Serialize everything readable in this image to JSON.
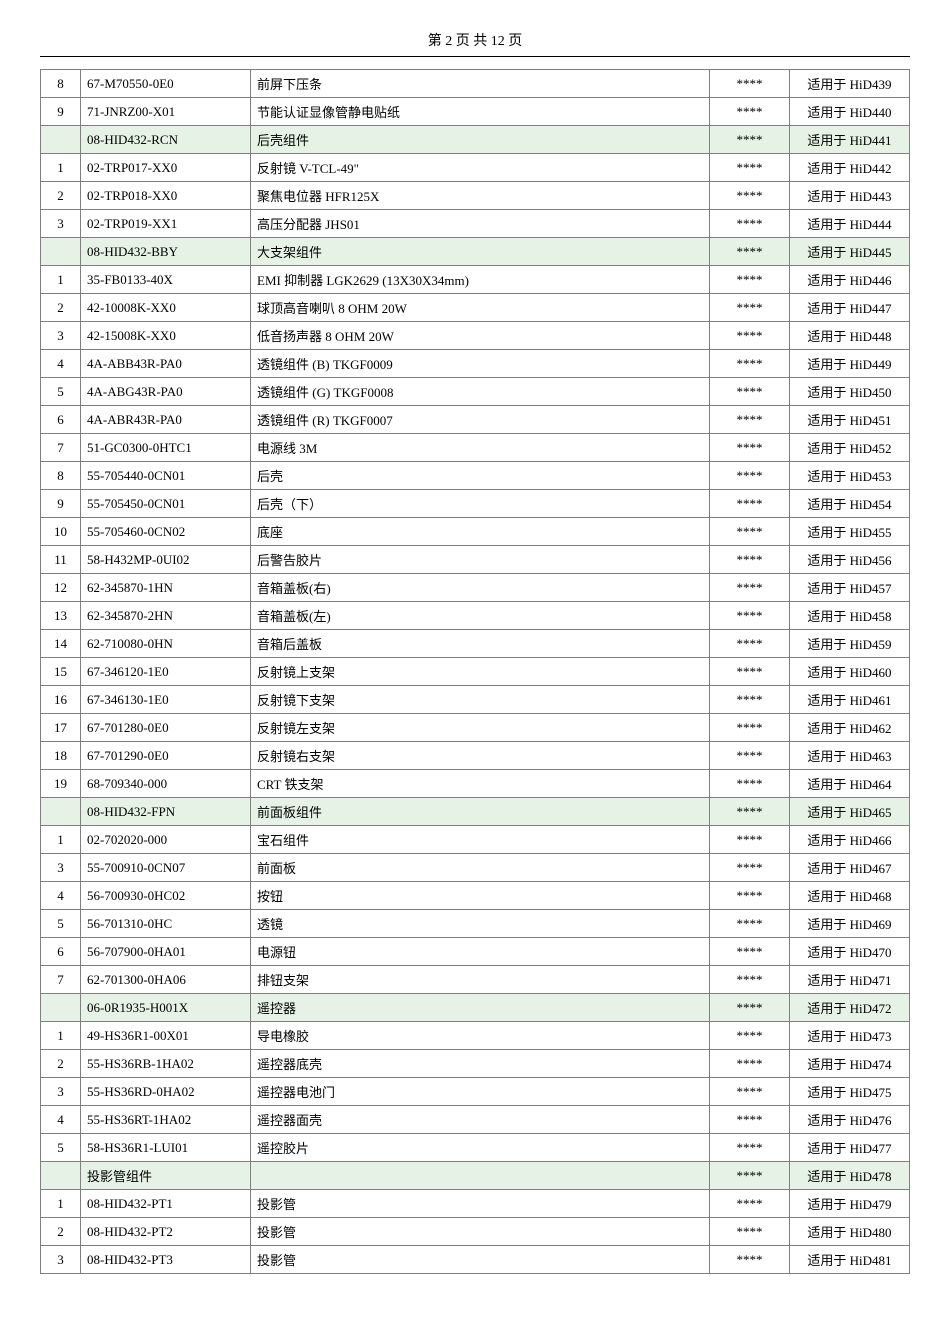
{
  "header": "第 2 页 共 12 页",
  "stars": "****",
  "rows": [
    {
      "num": "8",
      "code": "67-M70550-0E0",
      "desc": "前屏下压条",
      "model": "适用于 HiD439",
      "section": false
    },
    {
      "num": "9",
      "code": "71-JNRZ00-X01",
      "desc": "节能认证显像管静电贴纸",
      "model": "适用于 HiD440",
      "section": false
    },
    {
      "num": "",
      "code": "08-HID432-RCN",
      "desc": "后壳组件",
      "model": "适用于 HiD441",
      "section": true
    },
    {
      "num": "1",
      "code": "02-TRP017-XX0",
      "desc": "反射镜 V-TCL-49\"",
      "model": "适用于 HiD442",
      "section": false
    },
    {
      "num": "2",
      "code": "02-TRP018-XX0",
      "desc": "聚焦电位器 HFR125X",
      "model": "适用于 HiD443",
      "section": false
    },
    {
      "num": "3",
      "code": "02-TRP019-XX1",
      "desc": "高压分配器 JHS01",
      "model": "适用于 HiD444",
      "section": false
    },
    {
      "num": "",
      "code": "08-HID432-BBY",
      "desc": "大支架组件",
      "model": "适用于 HiD445",
      "section": true
    },
    {
      "num": "1",
      "code": "35-FB0133-40X",
      "desc": "EMI 抑制器 LGK2629 (13X30X34mm)",
      "model": "适用于 HiD446",
      "section": false
    },
    {
      "num": "2",
      "code": "42-10008K-XX0",
      "desc": "球顶高音喇叭 8 OHM 20W",
      "model": "适用于 HiD447",
      "section": false
    },
    {
      "num": "3",
      "code": "42-15008K-XX0",
      "desc": "低音扬声器 8 OHM 20W",
      "model": "适用于 HiD448",
      "section": false
    },
    {
      "num": "4",
      "code": "4A-ABB43R-PA0",
      "desc": "透镜组件 (B) TKGF0009",
      "model": "适用于 HiD449",
      "section": false
    },
    {
      "num": "5",
      "code": "4A-ABG43R-PA0",
      "desc": "透镜组件 (G) TKGF0008",
      "model": "适用于 HiD450",
      "section": false
    },
    {
      "num": "6",
      "code": "4A-ABR43R-PA0",
      "desc": "透镜组件 (R) TKGF0007",
      "model": "适用于 HiD451",
      "section": false
    },
    {
      "num": "7",
      "code": "51-GC0300-0HTC1",
      "desc": "电源线 3M",
      "model": "适用于 HiD452",
      "section": false
    },
    {
      "num": "8",
      "code": "55-705440-0CN01",
      "desc": "后壳",
      "model": "适用于 HiD453",
      "section": false
    },
    {
      "num": "9",
      "code": "55-705450-0CN01",
      "desc": "后壳（下）",
      "model": "适用于 HiD454",
      "section": false
    },
    {
      "num": "10",
      "code": "55-705460-0CN02",
      "desc": "底座",
      "model": "适用于 HiD455",
      "section": false
    },
    {
      "num": "11",
      "code": "58-H432MP-0UI02",
      "desc": "后警告胶片",
      "model": "适用于 HiD456",
      "section": false
    },
    {
      "num": "12",
      "code": "62-345870-1HN",
      "desc": "音箱盖板(右)",
      "model": "适用于 HiD457",
      "section": false
    },
    {
      "num": "13",
      "code": "62-345870-2HN",
      "desc": "音箱盖板(左)",
      "model": "适用于 HiD458",
      "section": false
    },
    {
      "num": "14",
      "code": "62-710080-0HN",
      "desc": "音箱后盖板",
      "model": "适用于 HiD459",
      "section": false
    },
    {
      "num": "15",
      "code": "67-346120-1E0",
      "desc": "反射镜上支架",
      "model": "适用于 HiD460",
      "section": false
    },
    {
      "num": "16",
      "code": "67-346130-1E0",
      "desc": "反射镜下支架",
      "model": "适用于 HiD461",
      "section": false
    },
    {
      "num": "17",
      "code": "67-701280-0E0",
      "desc": "反射镜左支架",
      "model": "适用于 HiD462",
      "section": false
    },
    {
      "num": "18",
      "code": "67-701290-0E0",
      "desc": "反射镜右支架",
      "model": "适用于 HiD463",
      "section": false
    },
    {
      "num": "19",
      "code": "68-709340-000",
      "desc": "CRT 铁支架",
      "model": "适用于 HiD464",
      "section": false
    },
    {
      "num": "",
      "code": "08-HID432-FPN",
      "desc": "前面板组件",
      "model": "适用于 HiD465",
      "section": true
    },
    {
      "num": "1",
      "code": "02-702020-000",
      "desc": "宝石组件",
      "model": "适用于 HiD466",
      "section": false
    },
    {
      "num": "3",
      "code": "55-700910-0CN07",
      "desc": "前面板",
      "model": "适用于 HiD467",
      "section": false
    },
    {
      "num": "4",
      "code": "56-700930-0HC02",
      "desc": "按钮",
      "model": "适用于 HiD468",
      "section": false
    },
    {
      "num": "5",
      "code": "56-701310-0HC",
      "desc": "透镜",
      "model": "适用于 HiD469",
      "section": false
    },
    {
      "num": "6",
      "code": "56-707900-0HA01",
      "desc": "电源钮",
      "model": "适用于 HiD470",
      "section": false
    },
    {
      "num": "7",
      "code": "62-701300-0HA06",
      "desc": "排钮支架",
      "model": "适用于 HiD471",
      "section": false
    },
    {
      "num": "",
      "code": "06-0R1935-H001X",
      "desc": "遥控器",
      "model": "适用于 HiD472",
      "section": true
    },
    {
      "num": "1",
      "code": "49-HS36R1-00X01",
      "desc": "导电橡胶",
      "model": "适用于 HiD473",
      "section": false
    },
    {
      "num": "2",
      "code": "55-HS36RB-1HA02",
      "desc": "遥控器底壳",
      "model": "适用于 HiD474",
      "section": false
    },
    {
      "num": "3",
      "code": "55-HS36RD-0HA02",
      "desc": "遥控器电池门",
      "model": "适用于 HiD475",
      "section": false
    },
    {
      "num": "4",
      "code": "55-HS36RT-1HA02",
      "desc": "遥控器面壳",
      "model": "适用于 HiD476",
      "section": false
    },
    {
      "num": "5",
      "code": "58-HS36R1-LUI01",
      "desc": "遥控胶片",
      "model": "适用于 HiD477",
      "section": false
    },
    {
      "num": "",
      "code": "投影管组件",
      "desc": "",
      "model": "适用于 HiD478",
      "section": true
    },
    {
      "num": "1",
      "code": "08-HID432-PT1",
      "desc": "投影管",
      "model": "适用于 HiD479",
      "section": false
    },
    {
      "num": "2",
      "code": "08-HID432-PT2",
      "desc": "投影管",
      "model": "适用于 HiD480",
      "section": false
    },
    {
      "num": "3",
      "code": "08-HID432-PT3",
      "desc": "投影管",
      "model": "适用于 HiD481",
      "section": false
    }
  ]
}
